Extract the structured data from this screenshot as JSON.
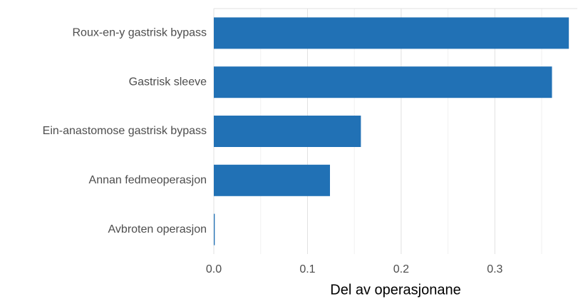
{
  "chart_data": {
    "type": "hbar",
    "categories": [
      "Roux-en-y gastrisk bypass",
      "Gastrisk sleeve",
      "Ein-anastomose gastrisk bypass",
      "Annan fedmeoperasjon",
      "Avbroten operasjon"
    ],
    "values": [
      0.379,
      0.361,
      0.157,
      0.124,
      0.001
    ],
    "color": "#2171b5",
    "x_label": "Del av operasjonane",
    "xlim": [
      0,
      0.388
    ],
    "xticks": [
      {
        "value": 0,
        "label": "0.0"
      },
      0.1,
      0.2,
      0.3
    ],
    "x_minor_ticks": [
      0.05,
      0.15,
      0.25,
      0.35
    ],
    "grid": true
  }
}
